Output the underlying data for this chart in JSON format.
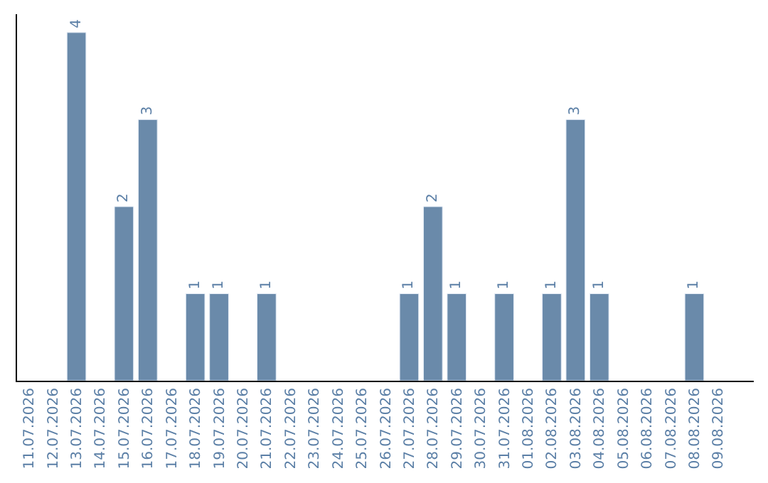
{
  "chart_data": {
    "type": "bar",
    "categories": [
      "11.07.2026",
      "12.07.2026",
      "13.07.2026",
      "14.07.2026",
      "15.07.2026",
      "16.07.2026",
      "17.07.2026",
      "18.07.2026",
      "19.07.2026",
      "20.07.2026",
      "21.07.2026",
      "22.07.2026",
      "23.07.2026",
      "24.07.2026",
      "25.07.2026",
      "26.07.2026",
      "27.07.2026",
      "28.07.2026",
      "29.07.2026",
      "30.07.2026",
      "31.07.2026",
      "01.08.2026",
      "02.08.2026",
      "03.08.2026",
      "04.08.2026",
      "05.08.2026",
      "06.08.2026",
      "07.08.2026",
      "08.08.2026",
      "09.08.2026"
    ],
    "values": [
      null,
      null,
      4,
      null,
      2,
      3,
      null,
      1,
      1,
      null,
      1,
      null,
      null,
      null,
      null,
      null,
      1,
      2,
      1,
      null,
      1,
      null,
      1,
      3,
      1,
      null,
      null,
      null,
      1,
      null
    ],
    "color": "#6a8aaa",
    "data_labels": true,
    "tick_labels": "x"
  }
}
